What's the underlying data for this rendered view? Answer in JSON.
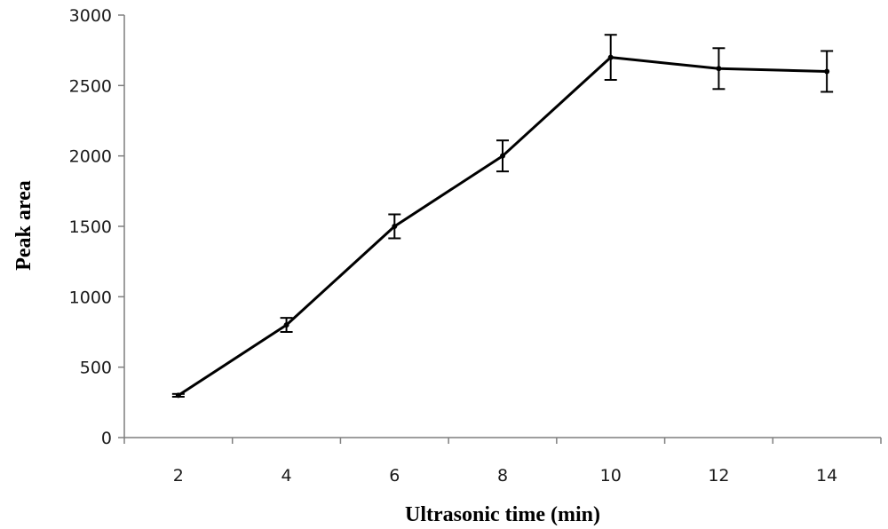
{
  "chart_data": {
    "type": "line",
    "title": "",
    "xlabel": "Ultrasonic time (min)",
    "ylabel": "Peak area",
    "x_categories": [
      "2",
      "4",
      "6",
      "8",
      "10",
      "12",
      "14"
    ],
    "ylim": [
      0,
      3000
    ],
    "y_ticks": [
      0,
      500,
      1000,
      1500,
      2000,
      2500,
      3000
    ],
    "grid": false,
    "legend": "none",
    "series": [
      {
        "values": [
          300,
          800,
          1500,
          2000,
          2700,
          2620,
          2600
        ],
        "errors": [
          10,
          50,
          85,
          110,
          160,
          145,
          145
        ],
        "color": "#000000"
      }
    ]
  }
}
